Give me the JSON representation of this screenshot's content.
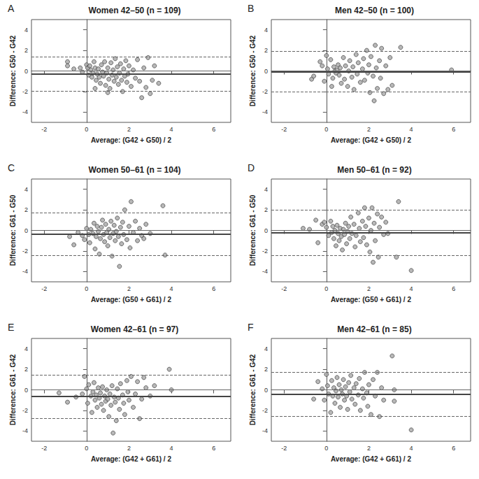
{
  "chart_data": [
    {
      "type": "scatter",
      "panel": "A",
      "title": "Women 42–50 (n = 109)",
      "x_label": "Average: (G42 + G50) / 2",
      "y_label": "Difference: G50 - G42",
      "x": [
        -0.9,
        -0.9,
        -0.6,
        -0.3,
        -0.2,
        0,
        0.05,
        0.1,
        0.15,
        0.2,
        0.25,
        0.3,
        0.35,
        0.4,
        0.45,
        0.5,
        0.55,
        0.6,
        0.65,
        0.7,
        0.75,
        0.8,
        0.85,
        0.9,
        0.95,
        1.0,
        1.05,
        1.1,
        1.15,
        1.2,
        1.25,
        1.3,
        1.35,
        1.4,
        1.45,
        1.5,
        1.55,
        1.6,
        1.65,
        1.7,
        1.75,
        1.8,
        1.85,
        1.9,
        1.95,
        2.0,
        2.1,
        2.2,
        2.3,
        2.4,
        2.5,
        2.6,
        2.7,
        2.8,
        2.9,
        3.0,
        3.1,
        3.2,
        3.4,
        1.0,
        0.4
      ],
      "values": [
        0.9,
        0.5,
        0.2,
        0.3,
        -0.1,
        0.6,
        0.3,
        -0.4,
        0.5,
        0.1,
        -0.6,
        -0.2,
        0.9,
        0.3,
        -0.9,
        -0.3,
        0.2,
        -0.6,
        -1.2,
        0.6,
        -0.1,
        -0.5,
        0.9,
        -1.4,
        -0.2,
        0.3,
        -0.8,
        -1.7,
        0.8,
        -0.4,
        0.1,
        -1.0,
        1.2,
        -0.6,
        0.4,
        -1.3,
        -0.2,
        0.7,
        -0.9,
        -2.0,
        0.2,
        -0.5,
        1.0,
        -1.1,
        -0.3,
        0.5,
        -1.5,
        0.1,
        -0.7,
        1.1,
        -1.0,
        -2.6,
        0.3,
        -1.6,
        1.3,
        -2.2,
        -0.9,
        0.5,
        -1.2,
        -2.1,
        -1.7
      ],
      "zero_line": 0,
      "mean_difference": -0.3,
      "limits_of_agreement": [
        -1.95,
        1.35
      ],
      "xlim": [
        -2.6,
        6.8
      ],
      "ylim": [
        -5,
        5
      ],
      "xticks": [
        -2,
        0,
        2,
        4,
        6
      ],
      "yticks": [
        -4,
        -2,
        0,
        2,
        4
      ],
      "color": "#a6a6a6",
      "marker": "circle",
      "grid": false
    },
    {
      "type": "scatter",
      "panel": "B",
      "title": "Men 42–50 (n = 100)",
      "x_label": "Average: (G42 + G50) / 2",
      "y_label": "Difference: G50 - G42",
      "x": [
        -0.7,
        -0.6,
        -0.3,
        -0.2,
        -0.1,
        0,
        0.05,
        0.1,
        0.2,
        0.25,
        0.3,
        0.35,
        0.4,
        0.45,
        0.5,
        0.55,
        0.6,
        0.65,
        0.7,
        0.8,
        0.85,
        0.9,
        1.0,
        1.05,
        1.1,
        1.2,
        1.25,
        1.3,
        1.4,
        1.45,
        1.5,
        1.6,
        1.7,
        1.75,
        1.8,
        1.9,
        1.95,
        2.0,
        2.05,
        2.1,
        2.2,
        2.25,
        2.3,
        2.35,
        2.4,
        2.5,
        2.55,
        2.6,
        2.7,
        2.8,
        2.9,
        3.0,
        3.1,
        3.5,
        5.9
      ],
      "values": [
        -0.8,
        -0.5,
        0.9,
        0.5,
        -1.0,
        1.5,
        0.2,
        -0.3,
        1.1,
        -1.5,
        -0.7,
        0.4,
        0.0,
        -0.2,
        0.1,
        0.6,
        -0.4,
        0.3,
        -1.2,
        1.3,
        -0.8,
        0.5,
        -1.5,
        0.0,
        1.0,
        -0.6,
        0.4,
        -1.8,
        1.6,
        -0.3,
        0.8,
        -1.1,
        0.2,
        1.2,
        -0.9,
        2.0,
        -0.2,
        0.6,
        -2.1,
        1.4,
        -0.5,
        -2.9,
        2.5,
        0.3,
        -1.7,
        1.0,
        -0.7,
        2.2,
        -2.2,
        0.5,
        -1.8,
        1.3,
        -1.4,
        2.3,
        0.1
      ],
      "zero_line": 0,
      "mean_difference": -0.1,
      "limits_of_agreement": [
        -2.05,
        1.9
      ],
      "xlim": [
        -2.6,
        6.8
      ],
      "ylim": [
        -5,
        5
      ],
      "xticks": [
        -2,
        0,
        2,
        4,
        6
      ],
      "yticks": [
        -4,
        -2,
        0,
        2,
        4
      ],
      "color": "#a6a6a6",
      "marker": "circle",
      "grid": false
    },
    {
      "type": "scatter",
      "panel": "C",
      "title": "Women 50–61 (n = 104)",
      "x_label": "Average: (G50 + G61) / 2",
      "y_label": "Difference: G61 - G50",
      "x": [
        -0.8,
        -0.6,
        -0.4,
        -0.2,
        -0.1,
        0,
        0.1,
        0.15,
        0.2,
        0.3,
        0.35,
        0.4,
        0.45,
        0.5,
        0.55,
        0.6,
        0.65,
        0.7,
        0.75,
        0.8,
        0.85,
        0.9,
        0.95,
        1.0,
        1.05,
        1.1,
        1.15,
        1.2,
        1.25,
        1.3,
        1.35,
        1.4,
        1.45,
        1.5,
        1.55,
        1.6,
        1.65,
        1.7,
        1.75,
        1.8,
        1.9,
        2.0,
        2.05,
        2.1,
        2.2,
        2.3,
        2.4,
        2.5,
        2.6,
        2.7,
        2.8,
        3.0,
        3.6,
        3.7
      ],
      "values": [
        -0.6,
        -1.4,
        -0.2,
        -0.5,
        -0.9,
        0.2,
        -0.4,
        -1.2,
        0.1,
        -0.3,
        0.7,
        -1.8,
        -0.6,
        0.4,
        -0.1,
        -2.3,
        -0.8,
        0.3,
        1.0,
        -0.4,
        -1.1,
        0.6,
        -0.2,
        -1.5,
        0.1,
        -0.7,
        0.9,
        -2.5,
        -0.3,
        0.5,
        -1.0,
        -0.1,
        1.2,
        -0.6,
        -3.5,
        0.3,
        -1.3,
        0.8,
        -0.4,
        2.0,
        -0.9,
        0.4,
        -1.7,
        2.8,
        -0.2,
        0.9,
        -1.0,
        0.2,
        -0.5,
        -0.8,
        0.6,
        -0.3,
        2.4,
        -2.4
      ],
      "zero_line": 0,
      "mean_difference": -0.35,
      "limits_of_agreement": [
        -2.4,
        1.7
      ],
      "xlim": [
        -2.6,
        6.8
      ],
      "ylim": [
        -5,
        5
      ],
      "xticks": [
        -2,
        0,
        2,
        4,
        6
      ],
      "yticks": [
        -4,
        -2,
        0,
        2,
        4
      ],
      "color": "#a6a6a6",
      "marker": "circle",
      "grid": false
    },
    {
      "type": "scatter",
      "panel": "D",
      "title": "Men 50–61 (n = 92)",
      "x_label": "Average: (G50 + G61) / 2",
      "y_label": "Difference: G61 - G50",
      "x": [
        -1.1,
        -0.8,
        -0.5,
        -0.4,
        -0.2,
        -0.1,
        0,
        0.1,
        0.2,
        0.25,
        0.3,
        0.35,
        0.4,
        0.45,
        0.5,
        0.55,
        0.6,
        0.65,
        0.7,
        0.75,
        0.8,
        0.85,
        0.9,
        0.95,
        1.0,
        1.05,
        1.1,
        1.15,
        1.2,
        1.3,
        1.35,
        1.4,
        1.5,
        1.55,
        1.6,
        1.7,
        1.75,
        1.8,
        1.85,
        1.9,
        2.0,
        2.05,
        2.1,
        2.15,
        2.2,
        2.25,
        2.3,
        2.4,
        2.45,
        2.5,
        2.6,
        2.7,
        2.8,
        2.9,
        3.3,
        3.4,
        4.0
      ],
      "values": [
        0.2,
        0.1,
        1.0,
        -1.2,
        0.6,
        0.8,
        0.3,
        -0.5,
        0.9,
        -0.2,
        0.4,
        -0.8,
        0.0,
        -1.5,
        0.5,
        -0.3,
        -1.0,
        0.2,
        -0.6,
        -1.9,
        0.1,
        -0.4,
        0.7,
        -1.3,
        -0.1,
        0.4,
        -0.8,
        1.3,
        -0.3,
        0.6,
        -1.6,
        -0.5,
        1.7,
        0.2,
        -1.1,
        0.9,
        -0.7,
        2.2,
        0.4,
        -1.4,
        1.2,
        -2.1,
        0.0,
        2.2,
        -3.1,
        0.7,
        -1.0,
        1.6,
        -2.6,
        0.3,
        1.3,
        -0.4,
        0.8,
        -0.3,
        -2.6,
        2.8,
        -3.9
      ],
      "zero_line": 0,
      "mean_difference": -0.2,
      "limits_of_agreement": [
        -2.4,
        2.0
      ],
      "xlim": [
        -2.6,
        6.8
      ],
      "ylim": [
        -5,
        5
      ],
      "xticks": [
        -2,
        0,
        2,
        4,
        6
      ],
      "yticks": [
        -4,
        -2,
        0,
        2,
        4
      ],
      "color": "#a6a6a6",
      "marker": "circle",
      "grid": false
    },
    {
      "type": "scatter",
      "panel": "E",
      "title": "Women 42–61 (n = 97)",
      "x_label": "Average: (G42 + G61) / 2",
      "y_label": "Difference: G61 - G42",
      "x": [
        -1.3,
        -0.9,
        -0.5,
        -0.2,
        -0.1,
        0,
        0.05,
        0.1,
        0.2,
        0.25,
        0.3,
        0.35,
        0.4,
        0.45,
        0.5,
        0.55,
        0.6,
        0.65,
        0.7,
        0.75,
        0.8,
        0.85,
        0.9,
        0.95,
        1.0,
        1.05,
        1.1,
        1.15,
        1.2,
        1.25,
        1.3,
        1.35,
        1.4,
        1.45,
        1.5,
        1.55,
        1.6,
        1.7,
        1.75,
        1.8,
        1.9,
        1.95,
        2.0,
        2.1,
        2.2,
        2.3,
        2.4,
        2.5,
        2.6,
        2.7,
        2.8,
        3.0,
        3.2,
        3.9,
        4.0
      ],
      "values": [
        -0.3,
        -1.2,
        -0.7,
        -0.4,
        1.3,
        0.1,
        -1.3,
        0.5,
        -0.6,
        -2.2,
        -0.2,
        0.7,
        -1.0,
        -0.5,
        -1.7,
        0.2,
        -0.8,
        -0.3,
        -1.4,
        0.3,
        -2.0,
        -0.6,
        -1.1,
        0.0,
        -0.9,
        -2.6,
        -0.4,
        -1.5,
        0.4,
        -4.2,
        -0.7,
        -1.2,
        -3.0,
        0.1,
        -0.8,
        -1.9,
        0.6,
        -0.5,
        -1.3,
        -2.4,
        0.9,
        -0.2,
        -1.0,
        1.3,
        -1.7,
        -0.4,
        0.8,
        -2.8,
        -0.9,
        1.2,
        0.2,
        -0.6,
        0.4,
        2.0,
        0.0
      ],
      "zero_line": 0,
      "mean_difference": -0.65,
      "limits_of_agreement": [
        -2.75,
        1.45
      ],
      "xlim": [
        -2.6,
        6.8
      ],
      "ylim": [
        -5,
        5
      ],
      "xticks": [
        -2,
        0,
        2,
        4,
        6
      ],
      "yticks": [
        -4,
        -2,
        0,
        2,
        4
      ],
      "color": "#a6a6a6",
      "marker": "circle",
      "grid": false
    },
    {
      "type": "scatter",
      "panel": "F",
      "title": "Men 42–61 (n = 85)",
      "x_label": "Average: (G42 + G61) / 2",
      "y_label": "Difference: G61 - G42",
      "x": [
        -0.6,
        -0.4,
        -0.2,
        -0.1,
        0,
        0.05,
        0.1,
        0.2,
        0.25,
        0.3,
        0.35,
        0.4,
        0.45,
        0.5,
        0.55,
        0.6,
        0.65,
        0.7,
        0.75,
        0.8,
        0.85,
        0.9,
        0.95,
        1.0,
        1.05,
        1.1,
        1.15,
        1.2,
        1.3,
        1.35,
        1.4,
        1.5,
        1.55,
        1.6,
        1.7,
        1.75,
        1.8,
        1.9,
        1.95,
        2.0,
        2.1,
        2.2,
        2.3,
        2.4,
        2.5,
        2.6,
        2.7,
        3.1,
        3.2,
        3.2,
        4.0
      ],
      "values": [
        -0.9,
        0.8,
        0.1,
        -1.0,
        1.5,
        0.4,
        -0.4,
        -2.2,
        0.9,
        -0.6,
        0.2,
        -1.3,
        -0.1,
        1.2,
        -0.7,
        0.5,
        -1.7,
        0.0,
        -0.4,
        1.0,
        -1.0,
        0.3,
        -0.6,
        -1.9,
        0.7,
        -0.2,
        1.4,
        -0.9,
        0.2,
        -1.4,
        0.6,
        -0.5,
        1.1,
        -2.0,
        0.1,
        -0.8,
        1.7,
        -0.3,
        -1.6,
        0.5,
        -2.4,
        1.0,
        -0.6,
        1.7,
        -2.6,
        0.2,
        -1.0,
        3.3,
        0.0,
        -1.1,
        -3.9
      ],
      "zero_line": 0,
      "mean_difference": -0.4,
      "limits_of_agreement": [
        -2.55,
        1.75
      ],
      "xlim": [
        -2.6,
        6.8
      ],
      "ylim": [
        -5,
        5
      ],
      "xticks": [
        -2,
        0,
        2,
        4,
        6
      ],
      "yticks": [
        -4,
        -2,
        0,
        2,
        4
      ],
      "color": "#a6a6a6",
      "marker": "circle",
      "grid": false
    }
  ]
}
